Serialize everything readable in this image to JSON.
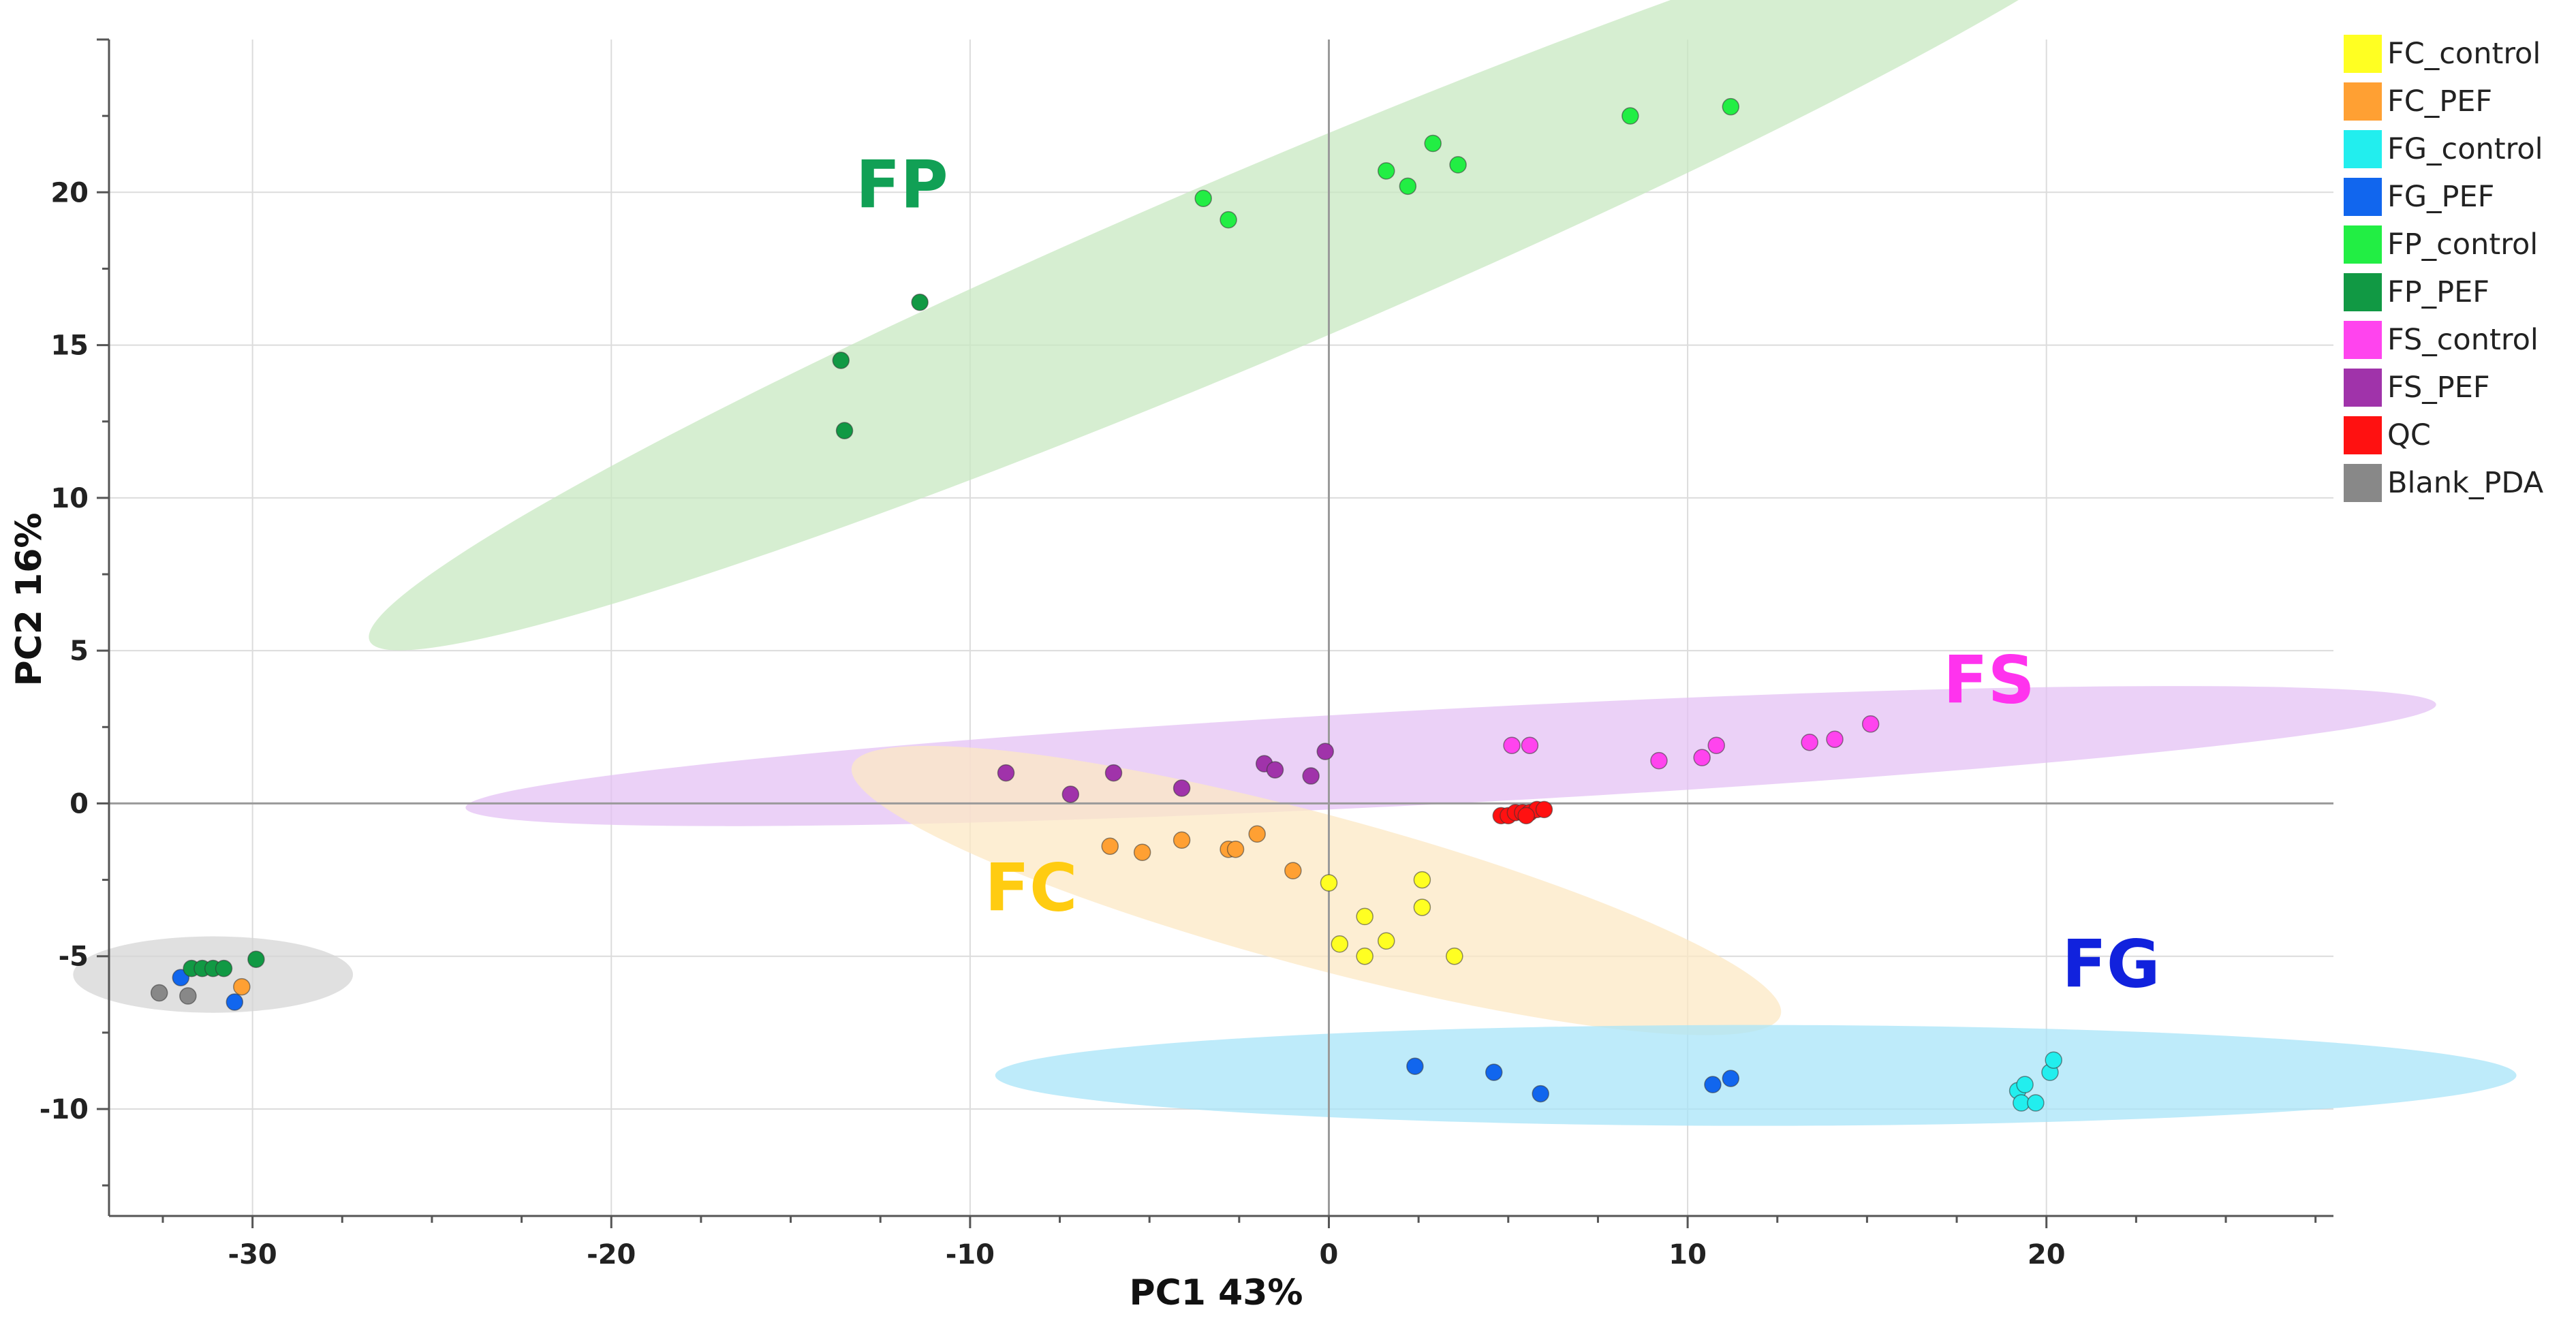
{
  "chart_data": {
    "type": "scatter",
    "title": "",
    "xlabel": "PC1 43%",
    "ylabel": "PC2 16%",
    "xlim": [
      -34,
      28
    ],
    "ylim": [
      -13.5,
      25
    ],
    "xticks": [
      -30,
      -20,
      -10,
      0,
      10,
      20
    ],
    "yticks": [
      -10,
      -5,
      0,
      5,
      10,
      15,
      20
    ],
    "grid": true,
    "series": [
      {
        "name": "FC_control",
        "color": "#ffff22",
        "points": [
          [
            0,
            -2.6
          ],
          [
            1,
            -3.7
          ],
          [
            2.6,
            -2.5
          ],
          [
            2.6,
            -3.4
          ],
          [
            0.3,
            -4.6
          ],
          [
            1.6,
            -4.5
          ],
          [
            1,
            -5
          ],
          [
            3.5,
            -5
          ]
        ]
      },
      {
        "name": "FC_PEF",
        "color": "#ffa033",
        "points": [
          [
            -6.1,
            -1.4
          ],
          [
            -5.2,
            -1.6
          ],
          [
            -4.1,
            -1.2
          ],
          [
            -2.8,
            -1.5
          ],
          [
            -2.6,
            -1.5
          ],
          [
            -2,
            -1
          ],
          [
            -1,
            -2.2
          ],
          [
            -30.3,
            -6
          ]
        ]
      },
      {
        "name": "FG_control",
        "color": "#22eeee",
        "points": [
          [
            19.2,
            -9.4
          ],
          [
            19.4,
            -9.2
          ],
          [
            19.3,
            -9.8
          ],
          [
            19.7,
            -9.8
          ],
          [
            20.1,
            -8.8
          ],
          [
            20.2,
            -8.4
          ]
        ]
      },
      {
        "name": "FG_PEF",
        "color": "#1166ee",
        "points": [
          [
            2.4,
            -8.6
          ],
          [
            4.6,
            -8.8
          ],
          [
            5.9,
            -9.5
          ],
          [
            10.7,
            -9.2
          ],
          [
            11.2,
            -9
          ],
          [
            -32,
            -5.7
          ],
          [
            -30.5,
            -6.5
          ]
        ]
      },
      {
        "name": "FP_control",
        "color": "#22ee44",
        "points": [
          [
            -3.5,
            19.8
          ],
          [
            -2.8,
            19.1
          ],
          [
            1.6,
            20.7
          ],
          [
            2.2,
            20.2
          ],
          [
            2.9,
            21.6
          ],
          [
            3.6,
            20.9
          ],
          [
            8.4,
            22.5
          ],
          [
            11.2,
            22.8
          ]
        ]
      },
      {
        "name": "FP_PEF",
        "color": "#119944",
        "points": [
          [
            -11.4,
            16.4
          ],
          [
            -13.6,
            14.5
          ],
          [
            -13.5,
            12.2
          ],
          [
            -31.7,
            -5.4
          ],
          [
            -31.4,
            -5.4
          ],
          [
            -31.1,
            -5.4
          ],
          [
            -30.8,
            -5.4
          ],
          [
            -29.9,
            -5.1
          ]
        ]
      },
      {
        "name": "FS_control",
        "color": "#ff44ee",
        "points": [
          [
            5.1,
            1.9
          ],
          [
            5.6,
            1.9
          ],
          [
            9.2,
            1.4
          ],
          [
            10.4,
            1.5
          ],
          [
            10.8,
            1.9
          ],
          [
            13.4,
            2
          ],
          [
            14.1,
            2.1
          ],
          [
            15.1,
            2.6
          ]
        ]
      },
      {
        "name": "FS_PEF",
        "color": "#a033aa",
        "points": [
          [
            -9,
            1
          ],
          [
            -7.2,
            0.3
          ],
          [
            -6,
            1
          ],
          [
            -4.1,
            0.5
          ],
          [
            -1.8,
            1.3
          ],
          [
            -1.5,
            1.1
          ],
          [
            -0.5,
            0.9
          ],
          [
            -0.1,
            1.7
          ]
        ]
      },
      {
        "name": "QC",
        "color": "#ff1111",
        "points": [
          [
            4.8,
            -0.4
          ],
          [
            5,
            -0.4
          ],
          [
            5.2,
            -0.3
          ],
          [
            5.4,
            -0.3
          ],
          [
            5.6,
            -0.3
          ],
          [
            5.8,
            -0.2
          ],
          [
            6,
            -0.2
          ],
          [
            5.5,
            -0.4
          ]
        ]
      },
      {
        "name": "Blank_PDA",
        "color": "#888888",
        "points": [
          [
            -32.6,
            -6.2
          ],
          [
            -31.8,
            -6.3
          ]
        ]
      }
    ],
    "clusters": [
      {
        "label": "FP",
        "label_color": "#11a055",
        "fill": "#c8e8c2",
        "label_at": [
          -11.9,
          19.5
        ],
        "cx": -1.7,
        "cy": 17.8,
        "rx": 27.2,
        "ry": 3.05,
        "angle_deg": 23
      },
      {
        "label": "FS",
        "label_color": "#ff33ee",
        "fill": "#e4c2f4",
        "label_at": [
          18.4,
          3.3
        ],
        "cx": 3.4,
        "cy": 1.55,
        "rx": 27.5,
        "ry": 1.55,
        "angle_deg": 3
      },
      {
        "label": "FC",
        "label_color": "#ffcc11",
        "fill": "#fce8c4",
        "label_at": [
          -8.3,
          -3.5
        ],
        "cx": -0.35,
        "cy": -2.85,
        "rx": 13.4,
        "ry": 2.5,
        "angle_deg": -15
      },
      {
        "label": "FG",
        "label_color": "#1122dd",
        "fill": "#a8e4f8",
        "label_at": [
          21.8,
          -6
        ],
        "cx": 11.9,
        "cy": -8.9,
        "rx": 21.2,
        "ry": 1.65,
        "angle_deg": 0
      },
      {
        "label": "",
        "label_color": "#888888",
        "fill": "#d6d6d6",
        "label_at": [
          0,
          0
        ],
        "cx": -31.1,
        "cy": -5.6,
        "rx": 3.9,
        "ry": 1.25,
        "angle_deg": 0
      }
    ]
  }
}
